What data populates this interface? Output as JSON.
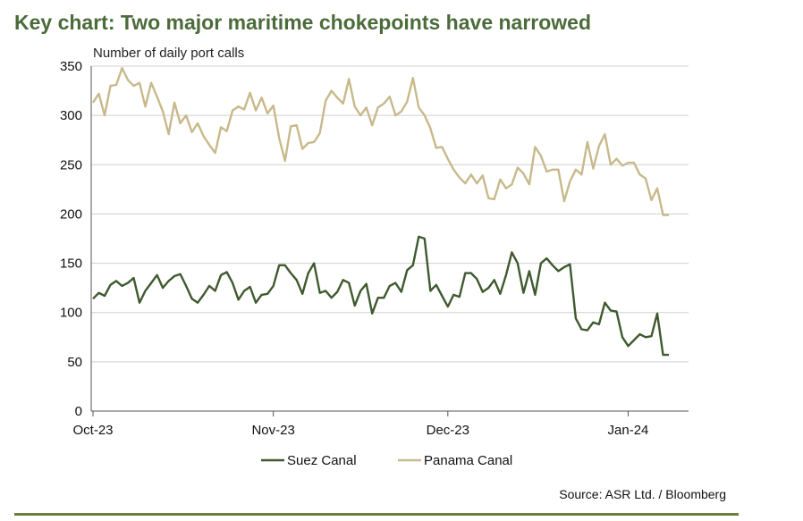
{
  "title": "Key chart: Two major maritime chokepoints have narrowed",
  "source": "Source: ASR Ltd. / Bloomberg",
  "colors": {
    "title": "#4b6b3a",
    "suez": "#3f5a2e",
    "panama": "#c8b98a",
    "grid": "#d0d0d0",
    "rule": "#6b7f3a"
  },
  "chart_data": {
    "type": "line",
    "title": "Key chart: Two major maritime chokepoints have narrowed",
    "ylabel": "Number of daily port calls",
    "xlabel": "",
    "ylim": [
      0,
      350
    ],
    "yticks": [
      0,
      50,
      100,
      150,
      200,
      250,
      300,
      350
    ],
    "xtick_labels": [
      "Oct-23",
      "Nov-23",
      "Dec-23",
      "Jan-24"
    ],
    "xtick_dates": [
      "2023-10-01",
      "2023-11-01",
      "2023-12-01",
      "2024-01-01"
    ],
    "grid": "horizontal",
    "legend": "bottom-center",
    "x": [
      "2023-10-01",
      "2023-10-02",
      "2023-10-03",
      "2023-10-04",
      "2023-10-05",
      "2023-10-06",
      "2023-10-07",
      "2023-10-08",
      "2023-10-09",
      "2023-10-10",
      "2023-10-11",
      "2023-10-12",
      "2023-10-13",
      "2023-10-14",
      "2023-10-15",
      "2023-10-16",
      "2023-10-17",
      "2023-10-18",
      "2023-10-19",
      "2023-10-20",
      "2023-10-21",
      "2023-10-22",
      "2023-10-23",
      "2023-10-24",
      "2023-10-25",
      "2023-10-26",
      "2023-10-27",
      "2023-10-28",
      "2023-10-29",
      "2023-10-30",
      "2023-10-31",
      "2023-11-01",
      "2023-11-02",
      "2023-11-03",
      "2023-11-04",
      "2023-11-05",
      "2023-11-06",
      "2023-11-07",
      "2023-11-08",
      "2023-11-09",
      "2023-11-10",
      "2023-11-11",
      "2023-11-12",
      "2023-11-13",
      "2023-11-14",
      "2023-11-15",
      "2023-11-16",
      "2023-11-17",
      "2023-11-18",
      "2023-11-19",
      "2023-11-20",
      "2023-11-21",
      "2023-11-22",
      "2023-11-23",
      "2023-11-24",
      "2023-11-25",
      "2023-11-26",
      "2023-11-27",
      "2023-11-28",
      "2023-11-29",
      "2023-11-30",
      "2023-12-01",
      "2023-12-02",
      "2023-12-03",
      "2023-12-04",
      "2023-12-05",
      "2023-12-06",
      "2023-12-07",
      "2023-12-08",
      "2023-12-09",
      "2023-12-10",
      "2023-12-11",
      "2023-12-12",
      "2023-12-13",
      "2023-12-14",
      "2023-12-15",
      "2023-12-16",
      "2023-12-17",
      "2023-12-18",
      "2023-12-19",
      "2023-12-20",
      "2023-12-21",
      "2023-12-22",
      "2023-12-23",
      "2023-12-24",
      "2023-12-25",
      "2023-12-26",
      "2023-12-27",
      "2023-12-28",
      "2023-12-29",
      "2023-12-30",
      "2023-12-31",
      "2024-01-01",
      "2024-01-02",
      "2024-01-03",
      "2024-01-04",
      "2024-01-05",
      "2024-01-06",
      "2024-01-07",
      "2024-01-08"
    ],
    "series": [
      {
        "name": "Suez Canal",
        "color": "#3f5a2e",
        "values": [
          114,
          120,
          117,
          128,
          132,
          127,
          130,
          135,
          110,
          122,
          130,
          138,
          125,
          132,
          137,
          139,
          127,
          114,
          110,
          118,
          127,
          122,
          138,
          141,
          130,
          113,
          122,
          126,
          110,
          118,
          119,
          127,
          148,
          148,
          140,
          133,
          119,
          140,
          150,
          120,
          122,
          115,
          121,
          133,
          130,
          107,
          122,
          129,
          99,
          115,
          115,
          127,
          130,
          121,
          143,
          148,
          177,
          175,
          122,
          128,
          117,
          106,
          118,
          116,
          140,
          140,
          134,
          121,
          125,
          133,
          119,
          138,
          161,
          150,
          120,
          142,
          118,
          150,
          155,
          148,
          142,
          146,
          149,
          94,
          83,
          82,
          90,
          88,
          110,
          102,
          101,
          75,
          66,
          72,
          78,
          75,
          76,
          99,
          57,
          57
        ]
      },
      {
        "name": "Panama Canal",
        "color": "#c8b98a",
        "values": [
          313,
          322,
          300,
          330,
          331,
          348,
          336,
          330,
          333,
          309,
          333,
          319,
          304,
          281,
          313,
          292,
          300,
          283,
          292,
          279,
          270,
          262,
          288,
          284,
          305,
          309,
          306,
          323,
          305,
          318,
          302,
          310,
          277,
          254,
          289,
          290,
          266,
          272,
          273,
          282,
          315,
          325,
          318,
          312,
          337,
          309,
          300,
          308,
          290,
          308,
          312,
          319,
          300,
          304,
          314,
          338,
          308,
          300,
          287,
          267,
          268,
          256,
          245,
          237,
          231,
          240,
          231,
          239,
          216,
          215,
          235,
          226,
          230,
          247,
          241,
          230,
          268,
          259,
          243,
          245,
          245,
          213,
          233,
          245,
          240,
          273,
          246,
          269,
          281,
          250,
          256,
          249,
          252,
          252,
          240,
          236,
          214,
          226,
          199,
          199
        ]
      }
    ]
  }
}
